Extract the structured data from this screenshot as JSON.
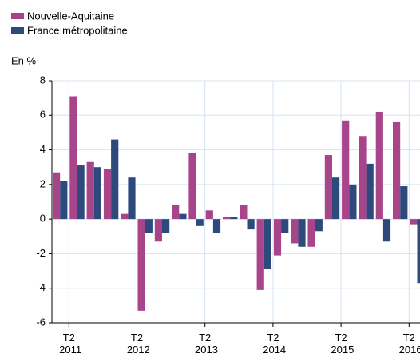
{
  "chart_data": {
    "type": "bar",
    "y_label": "En %",
    "categories": [
      null,
      "T2 2011",
      null,
      null,
      null,
      "T2 2012",
      null,
      null,
      null,
      "T2 2013",
      null,
      null,
      null,
      "T2 2014",
      null,
      null,
      null,
      "T2 2015",
      null,
      null,
      null,
      "T2 2016"
    ],
    "series": [
      {
        "name": "Nouvelle-Aquitaine",
        "color": "#a8448a",
        "values": [
          2.7,
          7.1,
          3.3,
          2.9,
          0.3,
          -5.3,
          -1.3,
          0.8,
          3.8,
          0.5,
          0.1,
          0.8,
          -4.1,
          -2.1,
          -1.4,
          -1.6,
          3.7,
          5.7,
          4.8,
          6.2,
          5.6,
          -0.3
        ]
      },
      {
        "name": "France métropolitaine",
        "color": "#2e4a7d",
        "values": [
          2.2,
          3.1,
          3.0,
          4.6,
          2.4,
          -0.8,
          -0.8,
          0.3,
          -0.4,
          -0.8,
          0.1,
          -0.6,
          -2.9,
          -0.8,
          -1.6,
          -0.7,
          2.4,
          2.0,
          3.2,
          -1.3,
          1.9,
          -3.7
        ]
      }
    ],
    "ylim": [
      -6,
      8
    ],
    "yticks": [
      -6,
      -4,
      -2,
      0,
      2,
      4,
      6,
      8
    ],
    "grid": true
  }
}
